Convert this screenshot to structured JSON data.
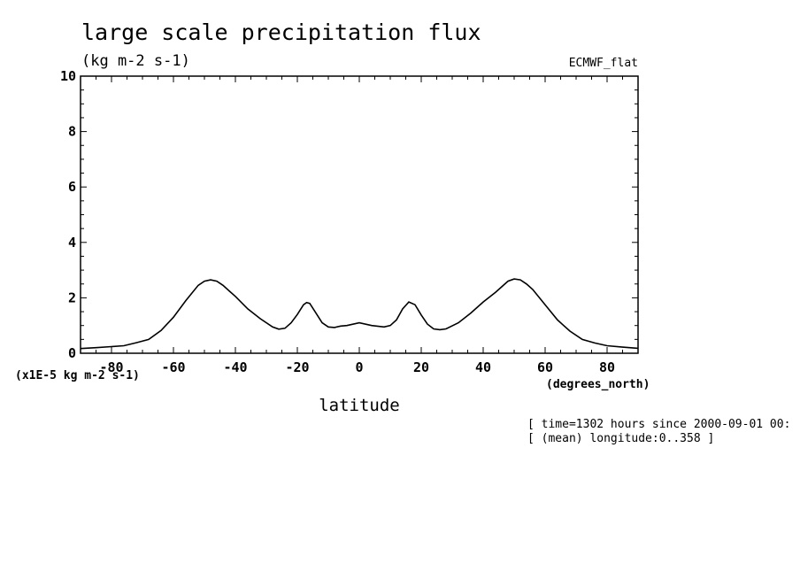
{
  "chart_data": {
    "type": "line",
    "title": "large scale precipitation flux",
    "subtitle": "(kg m-2 s-1)",
    "dataset_label": "ECMWF_flat",
    "xlabel": "latitude",
    "x_units": "(degrees_north)",
    "y_scale_label": "(x1E-5 kg m-2 s-1)",
    "xlim": [
      -90,
      90
    ],
    "ylim": [
      0,
      10
    ],
    "x_ticks": [
      -80,
      -60,
      -40,
      -20,
      0,
      20,
      40,
      60,
      80
    ],
    "x_tick_labels": [
      "-80",
      "-60",
      "-40",
      "-20",
      "0",
      "20",
      "40",
      "60",
      "80"
    ],
    "y_ticks": [
      0,
      2,
      4,
      6,
      8,
      10
    ],
    "y_tick_labels": [
      "0",
      "2",
      "4",
      "6",
      "8",
      "10"
    ],
    "grid": false,
    "info_lines": [
      "[ time=1302 hours since 2000-09-01 00:",
      "[ (mean) longitude:0..358 ]"
    ],
    "x": [
      -90,
      -85,
      -80,
      -76,
      -72,
      -68,
      -64,
      -60,
      -56,
      -52,
      -50,
      -48,
      -46,
      -44,
      -42,
      -40,
      -36,
      -32,
      -28,
      -26,
      -24,
      -22,
      -20,
      -18,
      -17,
      -16,
      -14,
      -12,
      -10,
      -8,
      -6,
      -4,
      0,
      4,
      8,
      10,
      12,
      14,
      16,
      18,
      20,
      22,
      24,
      26,
      28,
      32,
      36,
      40,
      44,
      48,
      50,
      52,
      54,
      56,
      60,
      64,
      68,
      72,
      76,
      80,
      85,
      90
    ],
    "y": [
      0.17,
      0.2,
      0.24,
      0.27,
      0.38,
      0.5,
      0.82,
      1.3,
      1.9,
      2.45,
      2.6,
      2.65,
      2.6,
      2.45,
      2.25,
      2.05,
      1.6,
      1.25,
      0.95,
      0.87,
      0.9,
      1.1,
      1.4,
      1.75,
      1.83,
      1.8,
      1.45,
      1.1,
      0.95,
      0.93,
      0.98,
      1.0,
      1.1,
      1.0,
      0.95,
      1.0,
      1.2,
      1.6,
      1.85,
      1.75,
      1.38,
      1.05,
      0.88,
      0.85,
      0.88,
      1.1,
      1.45,
      1.85,
      2.2,
      2.6,
      2.68,
      2.65,
      2.5,
      2.3,
      1.75,
      1.2,
      0.8,
      0.5,
      0.37,
      0.27,
      0.22,
      0.18
    ]
  }
}
